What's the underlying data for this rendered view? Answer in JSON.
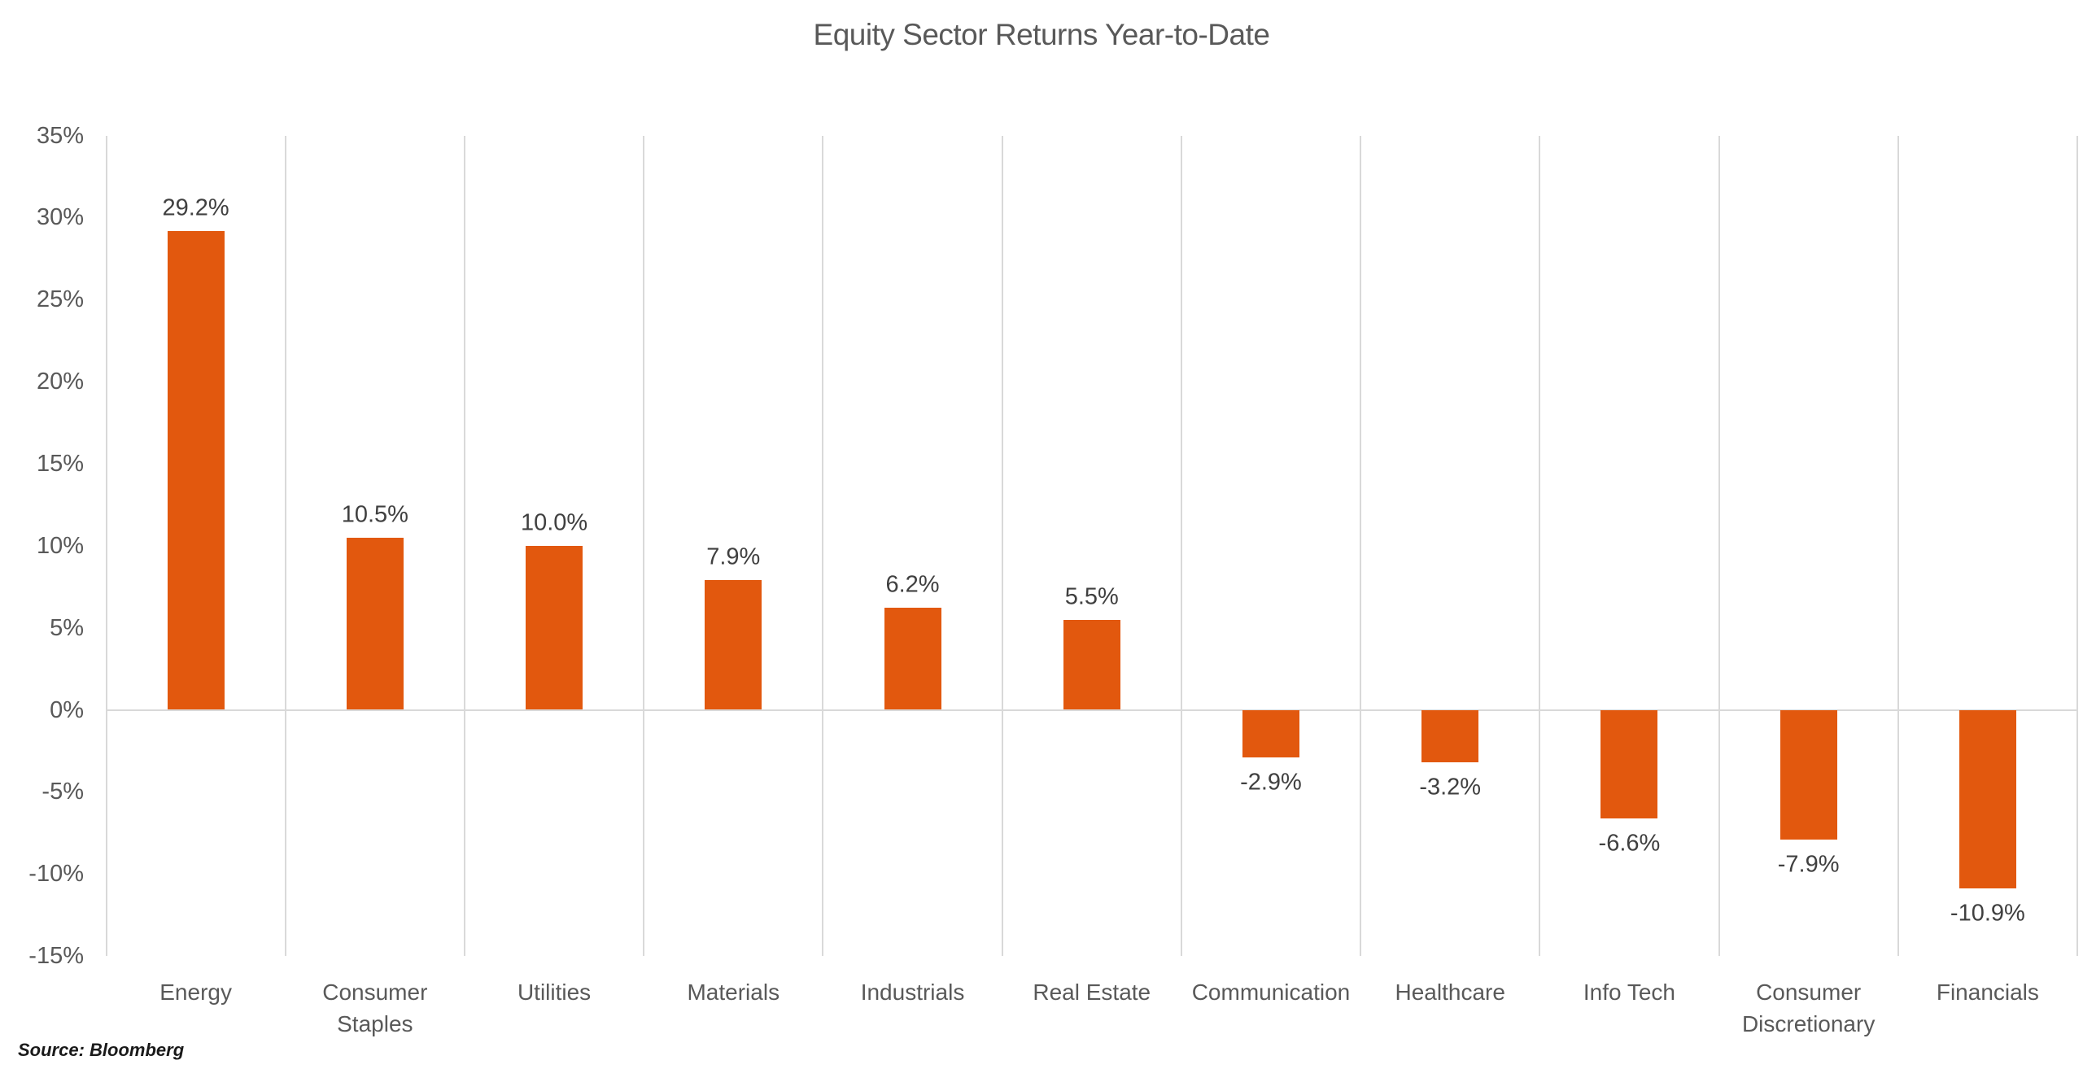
{
  "chart_data": {
    "type": "bar",
    "title": "Equity Sector Returns Year-to-Date",
    "source": "Source: Bloomberg",
    "categories": [
      "Energy",
      "Consumer Staples",
      "Utilities",
      "Materials",
      "Industrials",
      "Real Estate",
      "Communication",
      "Healthcare",
      "Info Tech",
      "Consumer Discretionary",
      "Financials"
    ],
    "values": [
      29.2,
      10.5,
      10.0,
      7.9,
      6.2,
      5.5,
      -2.9,
      -3.2,
      -6.6,
      -7.9,
      -10.9
    ],
    "data_labels": [
      "29.2%",
      "10.5%",
      "10.0%",
      "7.9%",
      "6.2%",
      "5.5%",
      "-2.9%",
      "-3.2%",
      "-6.6%",
      "-7.9%",
      "-10.9%"
    ],
    "xlabel": "",
    "ylabel": "",
    "ylim": [
      -15,
      35
    ],
    "ytick_values": [
      35,
      30,
      25,
      20,
      15,
      10,
      5,
      0,
      -5,
      -10,
      -15
    ],
    "ytick_labels": [
      "35%",
      "30%",
      "25%",
      "20%",
      "15%",
      "10%",
      "5%",
      "0%",
      "-5%",
      "-10%",
      "-15%"
    ],
    "grid": {
      "vertical": true,
      "horizontal": false,
      "zero_line": true
    },
    "legend_position": "none",
    "colors": {
      "bar": "#E2580E",
      "gridline": "#D9D9D9",
      "zero_line": "#D9D9D9",
      "title_text": "#595959",
      "axis_text": "#595959",
      "data_label_text": "#404040",
      "source_text": "#1A1A1A",
      "background": "#FFFFFF"
    }
  }
}
